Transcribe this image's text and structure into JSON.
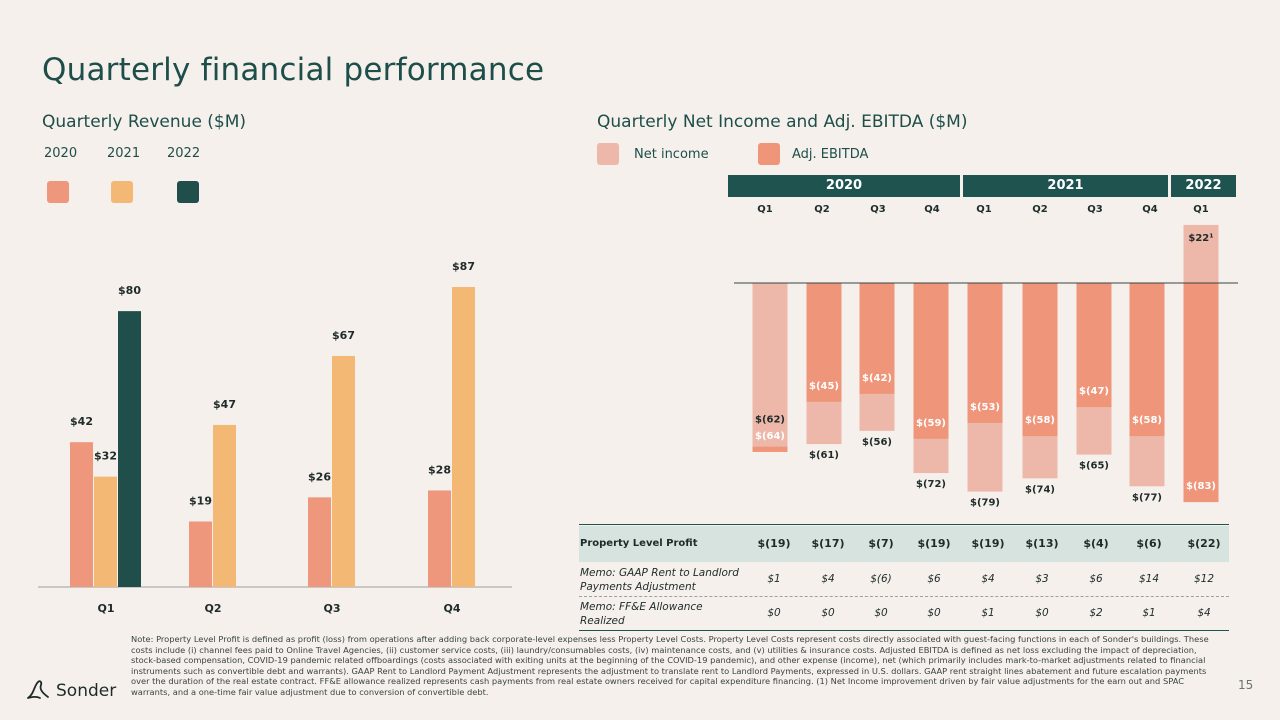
{
  "title": "Quarterly financial performance",
  "revenue": {
    "title": "Quarterly Revenue ($M)",
    "legend": [
      {
        "label": "2020",
        "color": "#EE977D"
      },
      {
        "label": "2021",
        "color": "#F2B874"
      },
      {
        "label": "2022",
        "color": "#1F4E4B"
      }
    ]
  },
  "netincome": {
    "title": "Quarterly Net Income and Adj. EBITDA ($M)",
    "legend": [
      {
        "label": "Net income",
        "color": "#EDB8A9"
      },
      {
        "label": "Adj. EBITDA",
        "color": "#EF957A"
      }
    ],
    "years": [
      "2020",
      "2021",
      "2022"
    ],
    "quarters": [
      "Q1",
      "Q2",
      "Q3",
      "Q4",
      "Q1",
      "Q2",
      "Q3",
      "Q4",
      "Q1"
    ]
  },
  "table": {
    "rows": [
      {
        "label": "Property Level Profit",
        "values": [
          "$(19)",
          "$(17)",
          "$(7)",
          "$(19)",
          "$(19)",
          "$(13)",
          "$(4)",
          "$(6)",
          "$(22)"
        ]
      },
      {
        "label": "Memo: GAAP Rent to Landlord Payments Adjustment",
        "values": [
          "$1",
          "$4",
          "$(6)",
          "$6",
          "$4",
          "$3",
          "$6",
          "$14",
          "$12"
        ]
      },
      {
        "label": "Memo: FF&E Allowance Realized",
        "values": [
          "$0",
          "$0",
          "$0",
          "$0",
          "$1",
          "$0",
          "$2",
          "$1",
          "$4"
        ]
      }
    ]
  },
  "chart_data": [
    {
      "type": "bar",
      "title": "Quarterly Revenue ($M)",
      "categories": [
        "Q1",
        "Q2",
        "Q3",
        "Q4"
      ],
      "series": [
        {
          "name": "2020",
          "values": [
            42,
            19,
            26,
            28
          ],
          "labels": [
            "$42",
            "$19",
            "$26",
            "$28"
          ]
        },
        {
          "name": "2021",
          "values": [
            32,
            47,
            67,
            87
          ],
          "labels": [
            "$32",
            "$47",
            "$67",
            "$87"
          ]
        },
        {
          "name": "2022",
          "values": [
            80,
            null,
            null,
            null
          ],
          "labels": [
            "$80",
            "",
            "",
            ""
          ]
        }
      ],
      "ylim": [
        0,
        90
      ]
    },
    {
      "type": "bar",
      "title": "Quarterly Net Income and Adj. EBITDA ($M)",
      "categories": [
        "2020 Q1",
        "2020 Q2",
        "2020 Q3",
        "2020 Q4",
        "2021 Q1",
        "2021 Q2",
        "2021 Q3",
        "2021 Q4",
        "2022 Q1"
      ],
      "series": [
        {
          "name": "Net income",
          "values": [
            -62,
            -61,
            -56,
            -72,
            -79,
            -74,
            -65,
            -77,
            22
          ],
          "labels": [
            "$(62)",
            "$(61)",
            "$(56)",
            "$(72)",
            "$(79)",
            "$(74)",
            "$(65)",
            "$(77)",
            "$22¹"
          ]
        },
        {
          "name": "Adj. EBITDA",
          "values": [
            -64,
            -45,
            -42,
            -59,
            -53,
            -58,
            -47,
            -58,
            -83
          ],
          "labels": [
            "$(64)",
            "$(45)",
            "$(42)",
            "$(59)",
            "$(53)",
            "$(58)",
            "$(47)",
            "$(58)",
            "$(83)"
          ]
        }
      ]
    }
  ],
  "footnote": "Note: Property Level Profit is defined as profit (loss) from operations after adding back corporate-level expenses less Property Level Costs. Property Level Costs represent costs directly associated with guest-facing functions in each of Sonder's buildings. These costs include (i) channel fees paid to Online Travel Agencies, (ii) customer service costs, (iii) laundry/consumables costs, (iv) maintenance costs, and (v) utilities & insurance costs. Adjusted EBITDA is defined as net loss excluding the impact of depreciation, stock-based compensation, COVID-19 pandemic related offboardings (costs associated with exiting units at the beginning of the COVID-19 pandemic), and other expense (income), net (which primarily includes mark-to-market adjustments related to financial instruments such as convertible debt and warrants). GAAP Rent to Landlord Payment Adjustment represents the adjustment to translate rent to Landlord Payments, expressed in U.S. dollars. GAAP rent straight lines abatement and future escalation payments over the duration of the real estate contract. FF&E allowance realized represents cash payments from real estate owners received for capital expenditure financing. (1) Net Income improvement driven by fair value adjustments for the earn out and SPAC warrants, and a one-time fair value adjustment due to conversion of convertible debt.",
  "brand": "Sonder",
  "page_number": "15"
}
